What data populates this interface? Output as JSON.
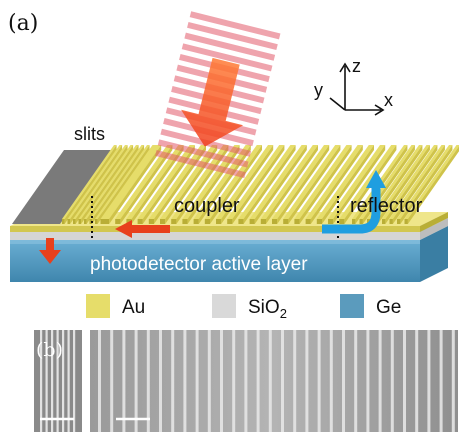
{
  "panel_a": {
    "label": "(a)",
    "labels": {
      "slits": "slits",
      "coupler": "coupler",
      "reflector": "reflector",
      "active_layer": "photodetector active layer"
    },
    "axes": {
      "z": "z",
      "y": "y",
      "x": "x"
    }
  },
  "legend": [
    {
      "name": "Au",
      "color": "#e6dd6a"
    },
    {
      "name": "SiO",
      "subscript": "2",
      "color": "#d9d9d9"
    },
    {
      "name": "Ge",
      "color": "#5b9bbd"
    }
  ],
  "panel_b": {
    "label": "(b)"
  },
  "colors": {
    "gold": "#e6dd6a",
    "gold_dark": "#b9ae36",
    "oxide": "#e4e4e4",
    "germanium": "#4f98bf",
    "arrow_red": "#e8401c",
    "arrow_blue": "#1f9ee0",
    "beam": "#e25a6a"
  }
}
